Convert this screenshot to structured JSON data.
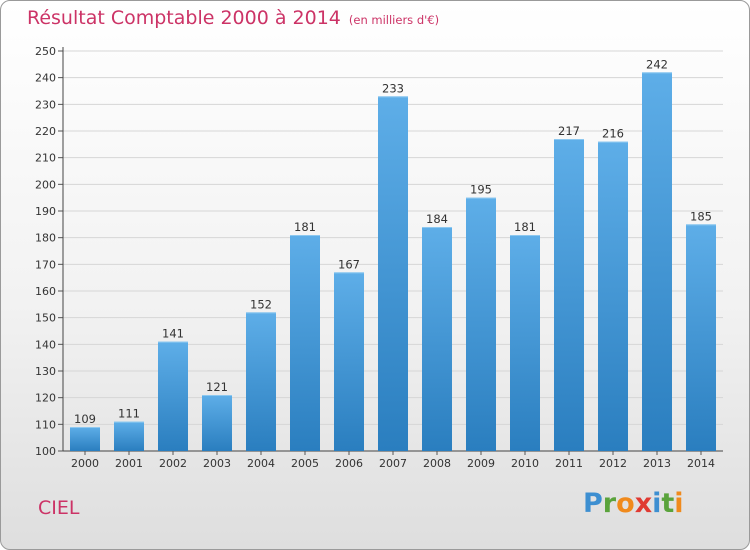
{
  "header": {
    "title": "Résultat Comptable 2000 à 2014",
    "subtitle": "(en milliers d'€)"
  },
  "footer": {
    "commune": "CIEL",
    "logo_letters": [
      {
        "char": "P",
        "color": "#3d8fd1"
      },
      {
        "char": "r",
        "color": "#5aa33c"
      },
      {
        "char": "o",
        "color": "#f08a1c"
      },
      {
        "char": "x",
        "color": "#e03a32"
      },
      {
        "char": "i",
        "color": "#3d8fd1"
      },
      {
        "char": "t",
        "color": "#5aa33c"
      },
      {
        "char": "i",
        "color": "#f08a1c"
      }
    ]
  },
  "chart_data": {
    "type": "bar",
    "categories": [
      "2000",
      "2001",
      "2002",
      "2003",
      "2004",
      "2005",
      "2006",
      "2007",
      "2008",
      "2009",
      "2010",
      "2011",
      "2012",
      "2013",
      "2014"
    ],
    "values": [
      109,
      111,
      141,
      121,
      152,
      181,
      167,
      233,
      184,
      195,
      181,
      217,
      216,
      242,
      185
    ],
    "ylim": [
      100,
      250
    ],
    "yticks": [
      100,
      110,
      120,
      130,
      140,
      150,
      160,
      170,
      180,
      190,
      200,
      210,
      220,
      230,
      240,
      250
    ],
    "grid": true,
    "bar_color_top": "#5eaee8",
    "bar_color_bottom": "#2a7ebf",
    "title_color": "#cc3366"
  }
}
